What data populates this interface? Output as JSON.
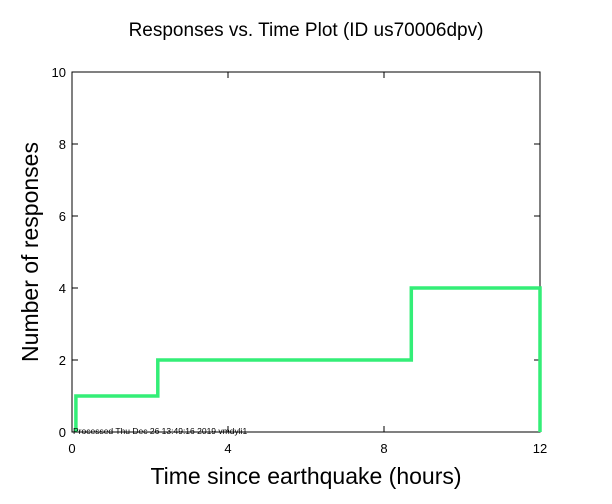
{
  "chart_data": {
    "type": "line",
    "step": true,
    "title": "Responses vs. Time Plot (ID us70006dpv)",
    "xlabel": "Time since earthquake (hours)",
    "ylabel": "Number of responses",
    "xlim": [
      0,
      12
    ],
    "ylim": [
      0,
      10
    ],
    "x_ticks": [
      0,
      4,
      8,
      12
    ],
    "y_ticks": [
      0,
      2,
      4,
      6,
      8,
      10
    ],
    "grid": false,
    "line_color": "#33ee77",
    "series": [
      {
        "x": [
          0.1,
          0.1,
          2.2,
          2.2,
          8.7,
          8.7,
          12.0,
          12.0
        ],
        "y": [
          0,
          1,
          1,
          2,
          2,
          4,
          4,
          0
        ]
      }
    ],
    "annotation": "Processed Thu Dec 26 13:49:16 2019 vmdyli1"
  }
}
